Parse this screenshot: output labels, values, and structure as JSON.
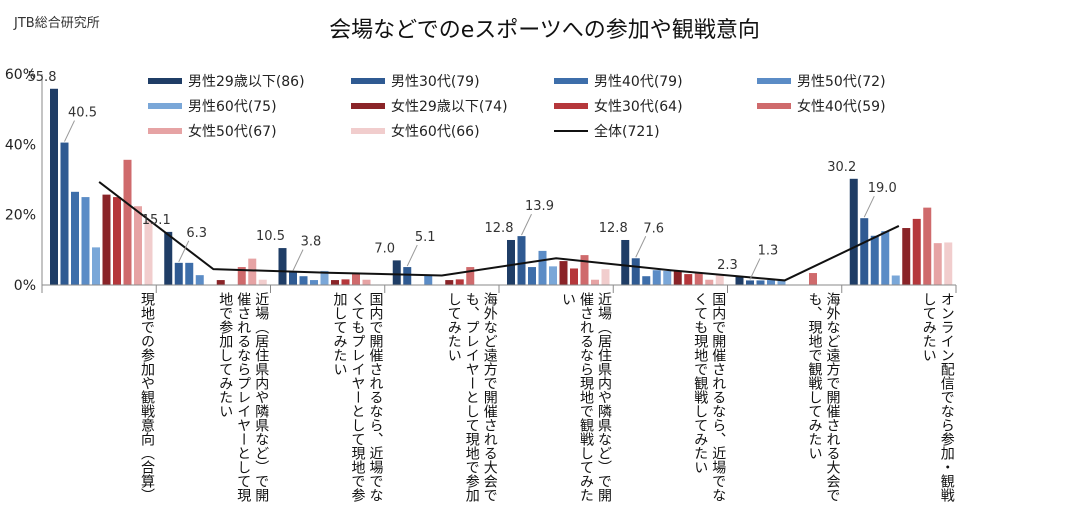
{
  "source": "JTB総合研究所",
  "colors": {
    "male": [
      "#1f3d66",
      "#2f5a92",
      "#3d6eaa",
      "#5b8cc6",
      "#7aa7d8"
    ],
    "female": [
      "#8a2428",
      "#b5373b",
      "#cf6a6c",
      "#e6a3a4",
      "#f1cdcd"
    ],
    "total": "#111111"
  },
  "chart_data": {
    "type": "bar",
    "title": "会場などでのeスポーツへの参加や観戦意向",
    "ylim": [
      0,
      60
    ],
    "yticks": [
      "0%",
      "20%",
      "40%",
      "60%"
    ],
    "categories": [
      "現地での参加や観戦意向（合算）",
      "近場（居住県内や隣県など）で開催されるならプレイヤーとして現地で参加してみたい",
      "国内で開催されるなら、近場でなくてもプレイヤーとして現地で参加してみたい",
      "海外など遠方で開催される大会でも、プレイヤーとして現地で参加してみたい",
      "近場（居住県内や隣県など）で開催されるなら現地で観戦してみたい",
      "国内で開催されるなら、近場でなくても現地で観戦してみたい",
      "海外など遠方で開催される大会でも、現地で観戦してみたい",
      "オンライン配信でなら参加・観戦してみたい"
    ],
    "series": [
      {
        "name": "男性29歳以下(86)",
        "values": [
          55.8,
          15.1,
          10.5,
          7.0,
          12.8,
          12.8,
          2.3,
          30.2
        ]
      },
      {
        "name": "男性30代(79)",
        "values": [
          40.5,
          6.3,
          3.8,
          5.1,
          13.9,
          7.6,
          1.3,
          19.0
        ]
      },
      {
        "name": "男性40代(79)",
        "values": [
          26.5,
          6.3,
          2.5,
          0.0,
          5.1,
          2.5,
          1.3,
          14.0
        ]
      },
      {
        "name": "男性50代(72)",
        "values": [
          25.0,
          2.8,
          1.4,
          2.8,
          9.7,
          4.2,
          1.4,
          15.3
        ]
      },
      {
        "name": "男性60代(75)",
        "values": [
          10.7,
          0.0,
          4.0,
          0.0,
          5.3,
          4.0,
          1.3,
          2.7
        ]
      },
      {
        "name": "女性29歳以下(74)",
        "values": [
          25.7,
          1.4,
          1.4,
          1.4,
          6.8,
          4.1,
          0.0,
          16.2
        ]
      },
      {
        "name": "女性30代(64)",
        "values": [
          25.0,
          0.0,
          1.6,
          1.6,
          4.7,
          3.1,
          0.0,
          18.8
        ]
      },
      {
        "name": "女性40代(59)",
        "values": [
          35.6,
          5.1,
          3.4,
          5.1,
          8.5,
          3.4,
          3.4,
          22.0
        ]
      },
      {
        "name": "女性50代(67)",
        "values": [
          22.4,
          7.5,
          1.5,
          0.0,
          1.5,
          1.5,
          0.0,
          11.9
        ]
      },
      {
        "name": "女性60代(66)",
        "values": [
          18.2,
          1.5,
          0.0,
          0.0,
          4.5,
          3.0,
          0.0,
          12.1
        ]
      }
    ],
    "total": {
      "name": "全体(721)",
      "values": [
        29.3,
        4.5,
        3.5,
        2.7,
        7.6,
        4.2,
        1.3,
        16.8
      ]
    },
    "data_labels": [
      {
        "category": 0,
        "series": 0,
        "text": "55.8"
      },
      {
        "category": 0,
        "series": 1,
        "text": "40.5"
      },
      {
        "category": 1,
        "series": 0,
        "text": "15.1"
      },
      {
        "category": 1,
        "series": 1,
        "text": "6.3"
      },
      {
        "category": 2,
        "series": 0,
        "text": "10.5"
      },
      {
        "category": 2,
        "series": 1,
        "text": "3.8"
      },
      {
        "category": 3,
        "series": 0,
        "text": "7.0"
      },
      {
        "category": 3,
        "series": 1,
        "text": "5.1"
      },
      {
        "category": 4,
        "series": 0,
        "text": "12.8"
      },
      {
        "category": 4,
        "series": 1,
        "text": "13.9"
      },
      {
        "category": 5,
        "series": 0,
        "text": "12.8"
      },
      {
        "category": 5,
        "series": 1,
        "text": "7.6"
      },
      {
        "category": 6,
        "series": 0,
        "text": "2.3"
      },
      {
        "category": 6,
        "series": 1,
        "text": "1.3"
      },
      {
        "category": 7,
        "series": 0,
        "text": "30.2"
      },
      {
        "category": 7,
        "series": 1,
        "text": "19.0"
      }
    ]
  }
}
